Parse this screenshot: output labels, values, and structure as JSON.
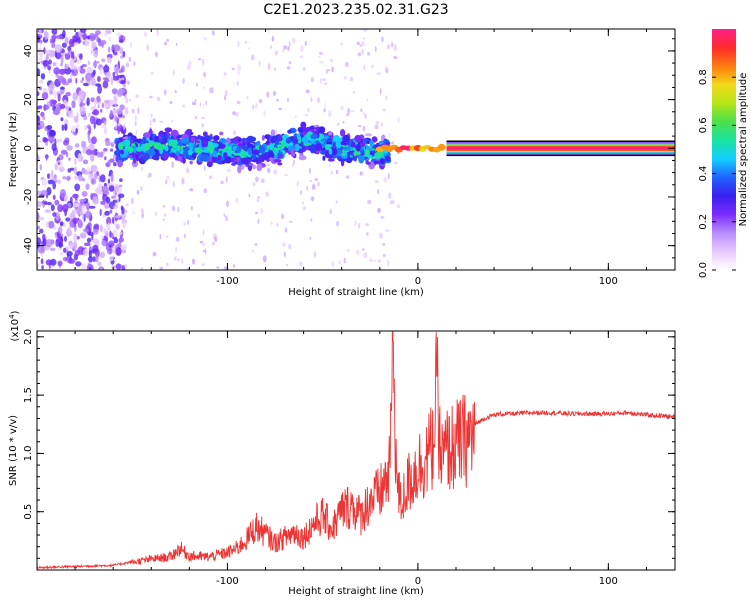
{
  "title": "C2E1.2023.235.02.31.G23",
  "colors": {
    "snr_line": "#ee3333",
    "spectrogram_cmap": [
      "#ffffff",
      "#e7c9ff",
      "#b98cff",
      "#7a2cff",
      "#3a1ff0",
      "#1f63ff",
      "#12d0ff",
      "#17e3a0",
      "#4be04a",
      "#b7e619",
      "#f2d81a",
      "#ff7a10",
      "#ff2a2a",
      "#ff1f8a"
    ]
  },
  "chart_data": [
    {
      "type": "heatmap",
      "xlabel": "Height of straight line (km)",
      "ylabel": "Frequency (Hz)",
      "xlim": [
        -200,
        135
      ],
      "ylim": [
        -50,
        49
      ],
      "xticks": [
        -100,
        0,
        100
      ],
      "xtick_labels": [
        "-100",
        "0",
        "100"
      ],
      "yticks": [
        -40,
        -20,
        0,
        20,
        40
      ],
      "ytick_labels": [
        "-40",
        "-20",
        "0",
        "20",
        "40"
      ],
      "colorbar": {
        "label": "Normalized spectral amplitude",
        "range": [
          0,
          1
        ],
        "ticks": [
          0.0,
          0.2,
          0.4,
          0.6,
          0.8
        ],
        "tick_labels": [
          "0.0",
          "0.2",
          "0.4",
          "0.6",
          "0.8"
        ]
      },
      "features": [
        {
          "description": "scattered low-amplitude purple noise",
          "x_range": [
            -200,
            -160
          ],
          "freq_range": [
            -50,
            49
          ],
          "amplitude": 0.15
        },
        {
          "description": "broad noisy band around 0 Hz",
          "x_range": [
            -158,
            -15
          ],
          "freq_range": [
            -8,
            8
          ],
          "amplitude": 0.3
        },
        {
          "description": "strong narrow carrier line",
          "x_range": [
            -20,
            135
          ],
          "freq_center": 0,
          "half_width_hz": 2,
          "peak_amplitude": 1.0
        }
      ]
    },
    {
      "type": "line",
      "xlabel": "Height of straight line (km)",
      "ylabel": "SNR (10 * v/v)",
      "yscale_label": "(x10",
      "yscale_exponent": "4",
      "xlim": [
        -200,
        135
      ],
      "ylim": [
        0,
        2.05
      ],
      "xticks": [
        -100,
        0,
        100
      ],
      "xtick_labels": [
        "-100",
        "0",
        "100"
      ],
      "yticks": [
        0.5,
        1.0,
        1.5,
        2.0
      ],
      "ytick_labels": [
        "0.5",
        "1.0",
        "1.5",
        "2.0"
      ],
      "grid": false,
      "series": [
        {
          "x": [
            -200,
            -180,
            -160,
            -150,
            -140,
            -130,
            -125,
            -120,
            -110,
            -100,
            -95,
            -90,
            -85,
            -80,
            -75,
            -70,
            -65,
            -60,
            -55,
            -50,
            -45,
            -40,
            -35,
            -30,
            -25,
            -20,
            -15,
            -13,
            -11,
            -9,
            -5,
            0,
            5,
            8,
            10,
            12,
            15,
            20,
            25,
            30,
            35,
            40,
            45,
            50,
            60,
            70,
            80,
            90,
            100,
            110,
            120,
            130,
            135
          ],
          "y": [
            0.02,
            0.03,
            0.04,
            0.07,
            0.1,
            0.12,
            0.2,
            0.13,
            0.12,
            0.16,
            0.2,
            0.28,
            0.4,
            0.33,
            0.25,
            0.3,
            0.35,
            0.3,
            0.42,
            0.5,
            0.38,
            0.55,
            0.6,
            0.5,
            0.65,
            0.7,
            0.9,
            2.03,
            0.8,
            0.6,
            0.8,
            0.95,
            1.05,
            1.15,
            1.7,
            1.0,
            1.1,
            1.15,
            1.2,
            1.25,
            1.3,
            1.33,
            1.34,
            1.34,
            1.35,
            1.35,
            1.34,
            1.34,
            1.34,
            1.35,
            1.33,
            1.32,
            1.31
          ]
        }
      ]
    }
  ]
}
